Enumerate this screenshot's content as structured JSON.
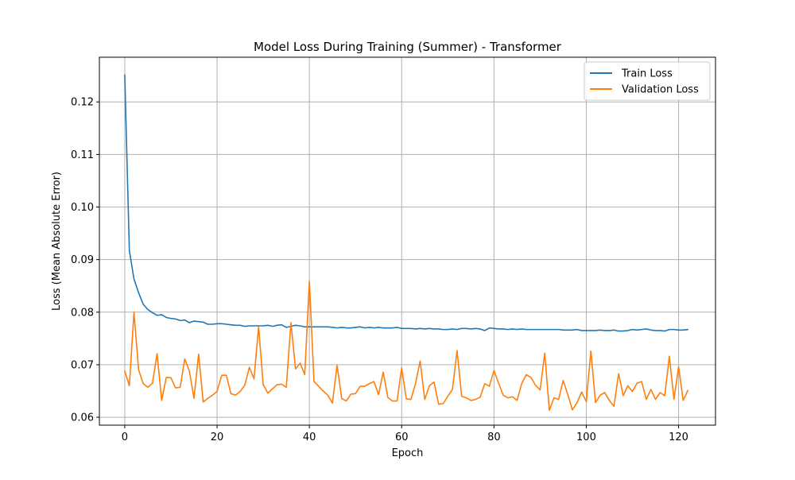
{
  "chart_data": {
    "type": "line",
    "title": "Model Loss During Training (Summer) - Transformer",
    "xlabel": "Epoch",
    "ylabel": "Loss (Mean Absolute Error)",
    "xlim": [
      -5.5,
      128
    ],
    "ylim": [
      0.0585,
      0.1285
    ],
    "xticks": [
      0,
      20,
      40,
      60,
      80,
      100,
      120
    ],
    "yticks": [
      0.06,
      0.07,
      0.08,
      0.09,
      0.1,
      0.11,
      0.12
    ],
    "ytick_labels": [
      "0.06",
      "0.07",
      "0.08",
      "0.09",
      "0.10",
      "0.11",
      "0.12"
    ],
    "grid": true,
    "legend_position": "top-right",
    "series": [
      {
        "name": "Train Loss",
        "color": "#1f77b4",
        "values": [
          0.1251,
          0.0917,
          0.0863,
          0.0837,
          0.0815,
          0.0805,
          0.0799,
          0.0794,
          0.0795,
          0.079,
          0.0788,
          0.0787,
          0.0784,
          0.0785,
          0.078,
          0.0783,
          0.0782,
          0.0781,
          0.0777,
          0.0777,
          0.0778,
          0.0778,
          0.0777,
          0.0776,
          0.0775,
          0.0775,
          0.0773,
          0.0774,
          0.0774,
          0.0774,
          0.0774,
          0.0775,
          0.0773,
          0.0775,
          0.0776,
          0.0771,
          0.0773,
          0.0775,
          0.0774,
          0.0772,
          0.0772,
          0.0772,
          0.0772,
          0.0772,
          0.0772,
          0.0771,
          0.077,
          0.0771,
          0.077,
          0.077,
          0.0771,
          0.0772,
          0.077,
          0.0771,
          0.077,
          0.0771,
          0.077,
          0.077,
          0.077,
          0.0771,
          0.0769,
          0.0769,
          0.0769,
          0.0768,
          0.0769,
          0.0768,
          0.0769,
          0.0768,
          0.0768,
          0.0767,
          0.0767,
          0.0768,
          0.0767,
          0.0769,
          0.0769,
          0.0768,
          0.0769,
          0.0768,
          0.0765,
          0.077,
          0.0769,
          0.0768,
          0.0768,
          0.0767,
          0.0768,
          0.0767,
          0.0768,
          0.0767,
          0.0767,
          0.0767,
          0.0767,
          0.0767,
          0.0767,
          0.0767,
          0.0767,
          0.0766,
          0.0766,
          0.0766,
          0.0767,
          0.0765,
          0.0765,
          0.0765,
          0.0765,
          0.0766,
          0.0765,
          0.0765,
          0.0766,
          0.0764,
          0.0764,
          0.0765,
          0.0767,
          0.0766,
          0.0767,
          0.0768,
          0.0766,
          0.0765,
          0.0765,
          0.0764,
          0.0767,
          0.0767,
          0.0766,
          0.0766,
          0.0767
        ]
      },
      {
        "name": "Validation Loss",
        "color": "#ff7f0e",
        "values": [
          0.0688,
          0.066,
          0.08,
          0.069,
          0.0664,
          0.0657,
          0.0665,
          0.0721,
          0.0632,
          0.0676,
          0.0675,
          0.0656,
          0.0657,
          0.0711,
          0.0688,
          0.0636,
          0.072,
          0.0629,
          0.0636,
          0.0642,
          0.0649,
          0.068,
          0.068,
          0.0645,
          0.0642,
          0.0649,
          0.0661,
          0.0695,
          0.0673,
          0.0772,
          0.0662,
          0.0646,
          0.0654,
          0.0662,
          0.0663,
          0.0657,
          0.078,
          0.0692,
          0.0703,
          0.0681,
          0.0859,
          0.0668,
          0.0659,
          0.065,
          0.0642,
          0.0627,
          0.0699,
          0.0636,
          0.0631,
          0.0644,
          0.0645,
          0.0659,
          0.0659,
          0.0664,
          0.0668,
          0.0643,
          0.0686,
          0.0638,
          0.0631,
          0.0631,
          0.0694,
          0.0635,
          0.0634,
          0.0664,
          0.0707,
          0.0634,
          0.066,
          0.0667,
          0.0625,
          0.0626,
          0.064,
          0.0653,
          0.0727,
          0.064,
          0.0637,
          0.0632,
          0.0634,
          0.0638,
          0.0664,
          0.0659,
          0.0689,
          0.0665,
          0.0642,
          0.0637,
          0.0639,
          0.0632,
          0.0664,
          0.0681,
          0.0676,
          0.0661,
          0.0652,
          0.0722,
          0.0613,
          0.0637,
          0.0634,
          0.067,
          0.0643,
          0.0614,
          0.0628,
          0.0648,
          0.063,
          0.0726,
          0.0628,
          0.0642,
          0.0647,
          0.0632,
          0.0621,
          0.0683,
          0.0641,
          0.066,
          0.0649,
          0.0665,
          0.0668,
          0.0634,
          0.0653,
          0.0634,
          0.0647,
          0.0641,
          0.0716,
          0.0634,
          0.0696,
          0.0632,
          0.0651
        ]
      }
    ]
  }
}
